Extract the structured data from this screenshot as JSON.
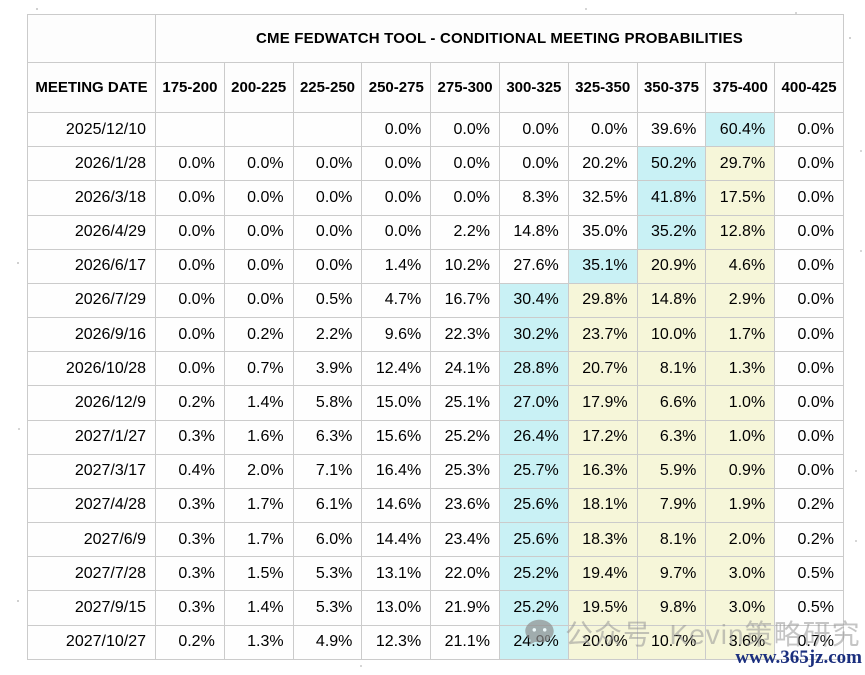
{
  "chart_data": {
    "type": "table",
    "title": "CME FEDWATCH TOOL - CONDITIONAL MEETING PROBABILITIES",
    "columns": [
      "MEETING DATE",
      "175-200",
      "200-225",
      "225-250",
      "250-275",
      "275-300",
      "300-325",
      "325-350",
      "350-375",
      "375-400",
      "400-425"
    ],
    "rows": [
      {
        "date": "2025/12/10",
        "values": [
          "",
          "",
          "",
          "0.0%",
          "0.0%",
          "0.0%",
          "0.0%",
          "39.6%",
          "60.4%",
          "0.0%"
        ],
        "hl": [
          "",
          "",
          "",
          "",
          "",
          "",
          "",
          "",
          "c",
          ""
        ]
      },
      {
        "date": "2026/1/28",
        "values": [
          "0.0%",
          "0.0%",
          "0.0%",
          "0.0%",
          "0.0%",
          "0.0%",
          "20.2%",
          "50.2%",
          "29.7%",
          "0.0%"
        ],
        "hl": [
          "",
          "",
          "",
          "",
          "",
          "",
          "",
          "c",
          "y",
          ""
        ]
      },
      {
        "date": "2026/3/18",
        "values": [
          "0.0%",
          "0.0%",
          "0.0%",
          "0.0%",
          "0.0%",
          "8.3%",
          "32.5%",
          "41.8%",
          "17.5%",
          "0.0%"
        ],
        "hl": [
          "",
          "",
          "",
          "",
          "",
          "",
          "",
          "c",
          "y",
          ""
        ]
      },
      {
        "date": "2026/4/29",
        "values": [
          "0.0%",
          "0.0%",
          "0.0%",
          "0.0%",
          "2.2%",
          "14.8%",
          "35.0%",
          "35.2%",
          "12.8%",
          "0.0%"
        ],
        "hl": [
          "",
          "",
          "",
          "",
          "",
          "",
          "",
          "c",
          "y",
          ""
        ]
      },
      {
        "date": "2026/6/17",
        "values": [
          "0.0%",
          "0.0%",
          "0.0%",
          "1.4%",
          "10.2%",
          "27.6%",
          "35.1%",
          "20.9%",
          "4.6%",
          "0.0%"
        ],
        "hl": [
          "",
          "",
          "",
          "",
          "",
          "",
          "c",
          "y",
          "y",
          ""
        ]
      },
      {
        "date": "2026/7/29",
        "values": [
          "0.0%",
          "0.0%",
          "0.5%",
          "4.7%",
          "16.7%",
          "30.4%",
          "29.8%",
          "14.8%",
          "2.9%",
          "0.0%"
        ],
        "hl": [
          "",
          "",
          "",
          "",
          "",
          "c",
          "y",
          "y",
          "y",
          ""
        ]
      },
      {
        "date": "2026/9/16",
        "values": [
          "0.0%",
          "0.2%",
          "2.2%",
          "9.6%",
          "22.3%",
          "30.2%",
          "23.7%",
          "10.0%",
          "1.7%",
          "0.0%"
        ],
        "hl": [
          "",
          "",
          "",
          "",
          "",
          "c",
          "y",
          "y",
          "y",
          ""
        ]
      },
      {
        "date": "2026/10/28",
        "values": [
          "0.0%",
          "0.7%",
          "3.9%",
          "12.4%",
          "24.1%",
          "28.8%",
          "20.7%",
          "8.1%",
          "1.3%",
          "0.0%"
        ],
        "hl": [
          "",
          "",
          "",
          "",
          "",
          "c",
          "y",
          "y",
          "y",
          ""
        ]
      },
      {
        "date": "2026/12/9",
        "values": [
          "0.2%",
          "1.4%",
          "5.8%",
          "15.0%",
          "25.1%",
          "27.0%",
          "17.9%",
          "6.6%",
          "1.0%",
          "0.0%"
        ],
        "hl": [
          "",
          "",
          "",
          "",
          "",
          "c",
          "y",
          "y",
          "y",
          ""
        ]
      },
      {
        "date": "2027/1/27",
        "values": [
          "0.3%",
          "1.6%",
          "6.3%",
          "15.6%",
          "25.2%",
          "26.4%",
          "17.2%",
          "6.3%",
          "1.0%",
          "0.0%"
        ],
        "hl": [
          "",
          "",
          "",
          "",
          "",
          "c",
          "y",
          "y",
          "y",
          ""
        ]
      },
      {
        "date": "2027/3/17",
        "values": [
          "0.4%",
          "2.0%",
          "7.1%",
          "16.4%",
          "25.3%",
          "25.7%",
          "16.3%",
          "5.9%",
          "0.9%",
          "0.0%"
        ],
        "hl": [
          "",
          "",
          "",
          "",
          "",
          "c",
          "y",
          "y",
          "y",
          ""
        ]
      },
      {
        "date": "2027/4/28",
        "values": [
          "0.3%",
          "1.7%",
          "6.1%",
          "14.6%",
          "23.6%",
          "25.6%",
          "18.1%",
          "7.9%",
          "1.9%",
          "0.2%"
        ],
        "hl": [
          "",
          "",
          "",
          "",
          "",
          "c",
          "y",
          "y",
          "y",
          ""
        ]
      },
      {
        "date": "2027/6/9",
        "values": [
          "0.3%",
          "1.7%",
          "6.0%",
          "14.4%",
          "23.4%",
          "25.6%",
          "18.3%",
          "8.1%",
          "2.0%",
          "0.2%"
        ],
        "hl": [
          "",
          "",
          "",
          "",
          "",
          "c",
          "y",
          "y",
          "y",
          ""
        ]
      },
      {
        "date": "2027/7/28",
        "values": [
          "0.3%",
          "1.5%",
          "5.3%",
          "13.1%",
          "22.0%",
          "25.2%",
          "19.4%",
          "9.7%",
          "3.0%",
          "0.5%"
        ],
        "hl": [
          "",
          "",
          "",
          "",
          "",
          "c",
          "y",
          "y",
          "y",
          ""
        ]
      },
      {
        "date": "2027/9/15",
        "values": [
          "0.3%",
          "1.4%",
          "5.3%",
          "13.0%",
          "21.9%",
          "25.2%",
          "19.5%",
          "9.8%",
          "3.0%",
          "0.5%"
        ],
        "hl": [
          "",
          "",
          "",
          "",
          "",
          "c",
          "y",
          "y",
          "y",
          ""
        ]
      },
      {
        "date": "2027/10/27",
        "values": [
          "0.2%",
          "1.3%",
          "4.9%",
          "12.3%",
          "21.1%",
          "24.9%",
          "20.0%",
          "10.7%",
          "3.6%",
          "0.7%"
        ],
        "hl": [
          "",
          "",
          "",
          "",
          "",
          "c",
          "y",
          "y",
          "y",
          ""
        ]
      }
    ]
  },
  "colors": {
    "cyan": "#c9f1f5",
    "yellow": "#f6f6d9",
    "border": "#cbcbcb",
    "urlblue": "#1b2f7e"
  },
  "watermark": {
    "icon": "wechat-icon",
    "text": "公众号  Kevin策略研究"
  },
  "footer": {
    "url": "www.365jz.com"
  }
}
